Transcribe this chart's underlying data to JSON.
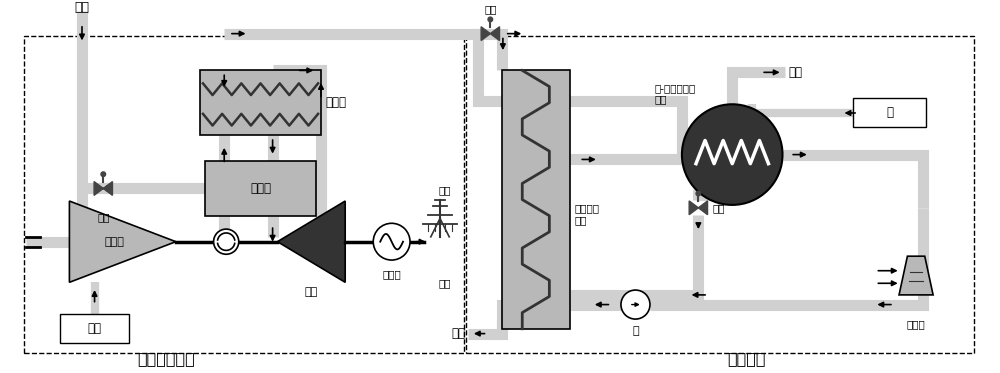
{
  "background": "#ffffff",
  "light_gray": "#b8b8b8",
  "dark_gray": "#333333",
  "black": "#000000",
  "white": "#ffffff",
  "pipe_color": "#d0d0d0",
  "labels": {
    "fuel": "燃料",
    "valve1": "阀门",
    "valve2": "阀门",
    "valve3": "阀门",
    "recuperator": "回热器",
    "combustor": "燃烧室",
    "compressor": "压气机",
    "turbine": "透平",
    "air": "空气",
    "generator": "发电机",
    "grid": "电网",
    "supply": "供电",
    "shell_heat": "管壳式换\n热器",
    "plate_heat": "水-水板式热交\n换器",
    "flue_gas": "烟气",
    "hot_water": "热水",
    "water": "水",
    "pump": "泵",
    "cooling_tower": "冷却塔",
    "micro_turbine": "微型燃气轮机",
    "heating_system": "供热系统"
  }
}
